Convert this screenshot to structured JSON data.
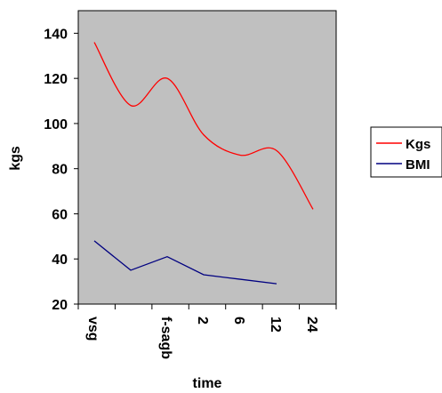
{
  "chart_data": {
    "type": "line",
    "categories": [
      "vsg",
      "",
      "f-sagb",
      "2",
      "6",
      "12",
      "24"
    ],
    "series": [
      {
        "name": "Kgs",
        "color": "#ff0000",
        "values": [
          136,
          108,
          120,
          95,
          86,
          88,
          62
        ]
      },
      {
        "name": "BMI",
        "color": "#000080",
        "values": [
          48,
          35,
          41,
          33,
          31,
          29,
          null
        ]
      }
    ],
    "xlabel": "time",
    "ylabel": "kgs",
    "ylim": [
      20,
      150
    ],
    "yticks": [
      20,
      40,
      60,
      80,
      100,
      120,
      140
    ],
    "plot_background": "#c0c0c0",
    "grid": false,
    "legend_position": "right"
  }
}
